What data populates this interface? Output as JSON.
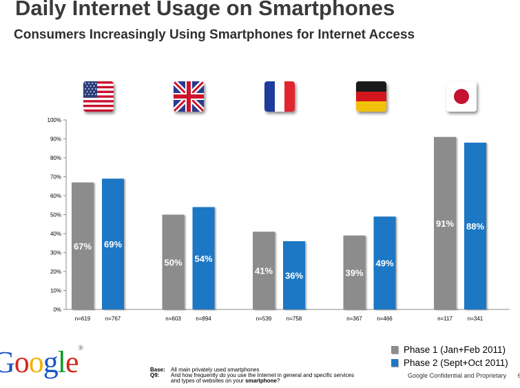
{
  "title": "Daily Internet Usage on Smartphones",
  "subtitle": "Consumers Increasingly Using Smartphones for Internet Access",
  "chart_data": {
    "type": "bar",
    "categories": [
      "United States",
      "United Kingdom",
      "France",
      "Germany",
      "Japan"
    ],
    "series": [
      {
        "name": "Phase 1 (Jan+Feb 2011)",
        "color": "#8c8c8c",
        "values": [
          67,
          50,
          41,
          39,
          91
        ],
        "labels": [
          "67%",
          "50%",
          "41%",
          "39%",
          "91%"
        ],
        "n": [
          "n=619",
          "n=603",
          "n=539",
          "n=367",
          "n=117"
        ]
      },
      {
        "name": "Phase 2 (Sept+Oct 2011)",
        "color": "#1f77c4",
        "values": [
          69,
          54,
          36,
          49,
          88
        ],
        "labels": [
          "69%",
          "54%",
          "36%",
          "49%",
          "88%"
        ],
        "n": [
          "n=767",
          "n=894",
          "n=758",
          "n=466",
          "n=341"
        ]
      }
    ],
    "yticks": [
      "0%",
      "10%",
      "20%",
      "30%",
      "40%",
      "50%",
      "60%",
      "70%",
      "80%",
      "90%",
      "100%"
    ],
    "ylim": [
      0,
      100
    ],
    "legend_position": "bottom-right"
  },
  "flags": [
    "us-flag-icon",
    "uk-flag-icon",
    "france-flag-icon",
    "germany-flag-icon",
    "japan-flag-icon"
  ],
  "legend": [
    {
      "label": "Phase 1 (Jan+Feb 2011)",
      "color": "#8c8c8c"
    },
    {
      "label": "Phase 2 (Sept+Oct 2011)",
      "color": "#1f77c4"
    }
  ],
  "logo": {
    "text": "Google",
    "tm": "®"
  },
  "base": {
    "base_label": "Base:",
    "base_text": "All main privately used smartphones",
    "q_label": "Q9:",
    "q_text_1": "And how frequently do you use the Internet in general and specific services",
    "q_text_2": "and types of websites on your ",
    "q_text_bold": "smartphone",
    "q_text_end": "?"
  },
  "footer": {
    "text": "Google Confidential and Proprietary",
    "page": "6"
  }
}
